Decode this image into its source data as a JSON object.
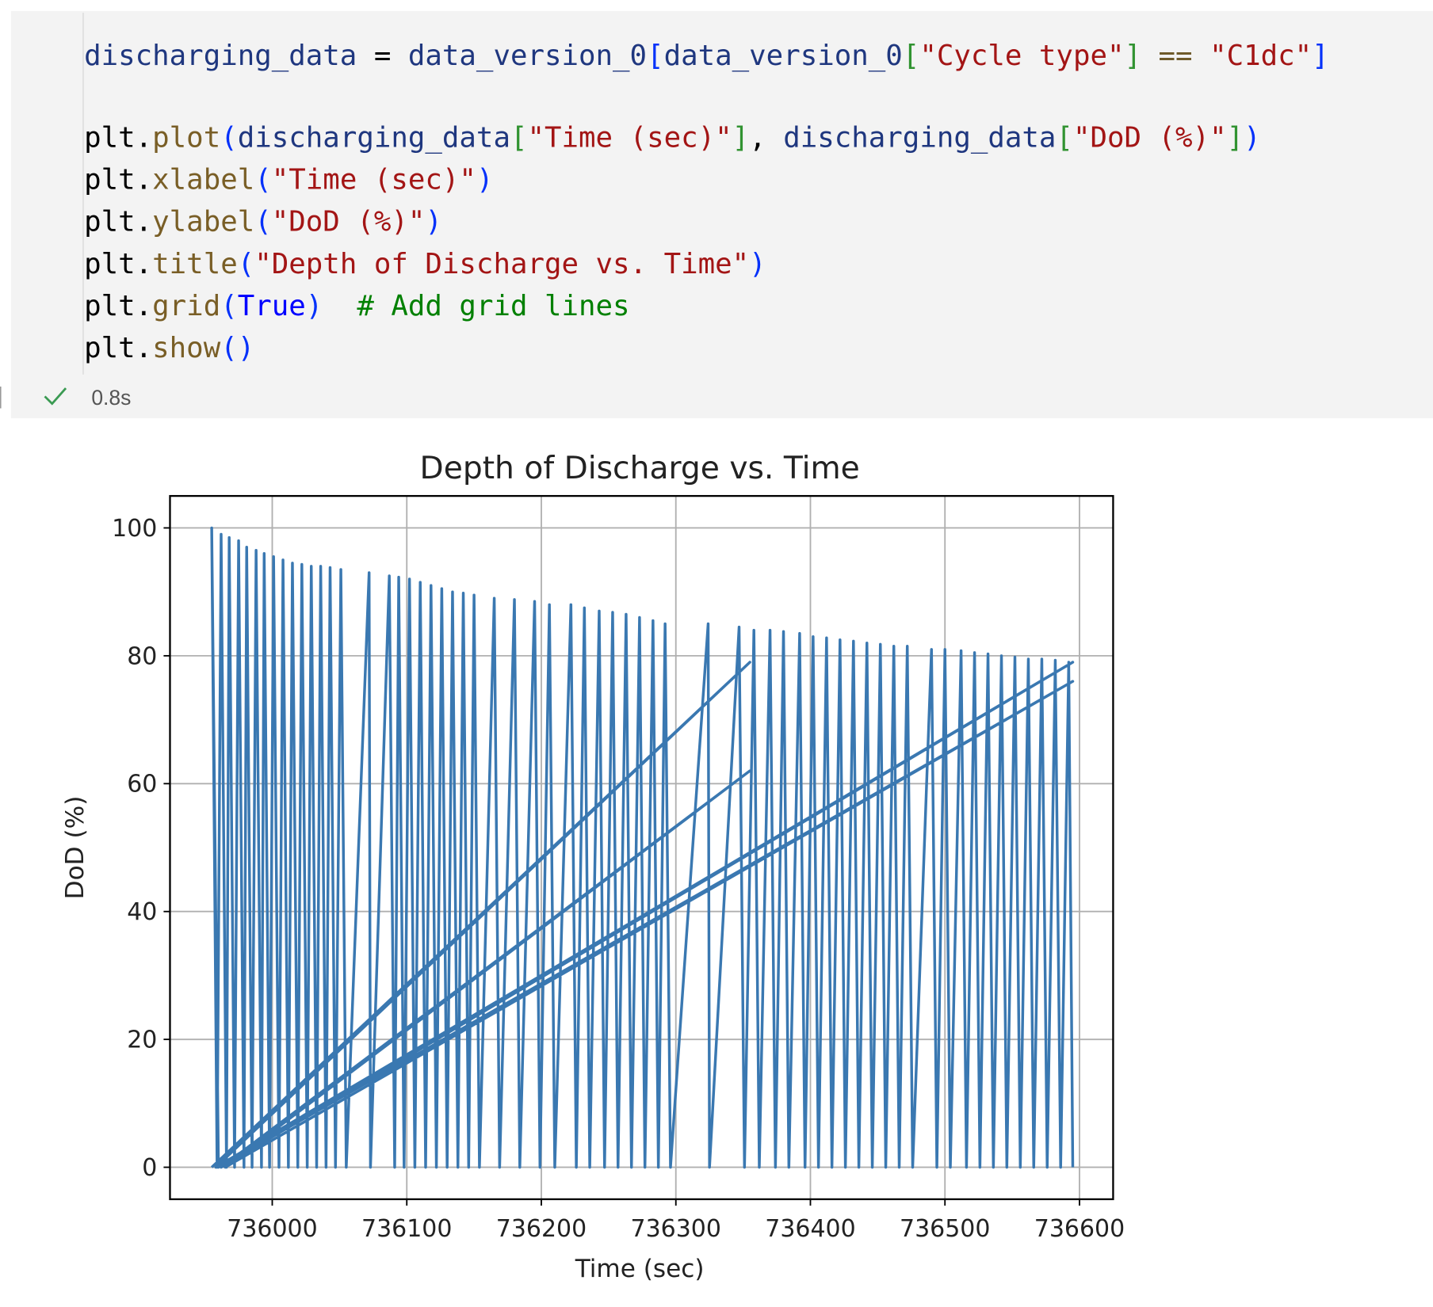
{
  "code": {
    "lines": [
      {
        "tokens": [
          {
            "text": "discharging_data",
            "color": "#1f377f"
          },
          {
            "text": " = ",
            "color": "#000000"
          },
          {
            "text": "data_version_0",
            "color": "#1f377f"
          },
          {
            "text": "[",
            "color": "#0431fa"
          },
          {
            "text": "data_version_0",
            "color": "#1f377f"
          },
          {
            "text": "[",
            "color": "#319331"
          },
          {
            "text": "\"Cycle type\"",
            "color": "#a31515"
          },
          {
            "text": "]",
            "color": "#319331"
          },
          {
            "text": " == ",
            "color": "#6f5a2a"
          },
          {
            "text": "\"C1dc\"",
            "color": "#a31515"
          },
          {
            "text": "]",
            "color": "#0431fa"
          }
        ]
      },
      {
        "tokens": [
          {
            "text": "plt.",
            "color": "#000000"
          },
          {
            "text": "plot",
            "color": "#795e26"
          },
          {
            "text": "(",
            "color": "#0431fa"
          },
          {
            "text": "discharging_data",
            "color": "#1f377f"
          },
          {
            "text": "[",
            "color": "#319331"
          },
          {
            "text": "\"Time (sec)\"",
            "color": "#a31515"
          },
          {
            "text": "]",
            "color": "#319331"
          },
          {
            "text": ", ",
            "color": "#000000"
          },
          {
            "text": "discharging_data",
            "color": "#1f377f"
          },
          {
            "text": "[",
            "color": "#319331"
          },
          {
            "text": "\"DoD (%)\"",
            "color": "#a31515"
          },
          {
            "text": "]",
            "color": "#319331"
          },
          {
            "text": ")",
            "color": "#0431fa"
          }
        ]
      },
      {
        "tokens": [
          {
            "text": "plt.",
            "color": "#000000"
          },
          {
            "text": "xlabel",
            "color": "#795e26"
          },
          {
            "text": "(",
            "color": "#0431fa"
          },
          {
            "text": "\"Time (sec)\"",
            "color": "#a31515"
          },
          {
            "text": ")",
            "color": "#0431fa"
          }
        ]
      },
      {
        "tokens": [
          {
            "text": "plt.",
            "color": "#000000"
          },
          {
            "text": "ylabel",
            "color": "#795e26"
          },
          {
            "text": "(",
            "color": "#0431fa"
          },
          {
            "text": "\"DoD (%)\"",
            "color": "#a31515"
          },
          {
            "text": ")",
            "color": "#0431fa"
          }
        ]
      },
      {
        "tokens": [
          {
            "text": "plt.",
            "color": "#000000"
          },
          {
            "text": "title",
            "color": "#795e26"
          },
          {
            "text": "(",
            "color": "#0431fa"
          },
          {
            "text": "\"Depth of Discharge vs. Time\"",
            "color": "#a31515"
          },
          {
            "text": ")",
            "color": "#0431fa"
          }
        ]
      },
      {
        "tokens": [
          {
            "text": "plt.",
            "color": "#000000"
          },
          {
            "text": "grid",
            "color": "#795e26"
          },
          {
            "text": "(",
            "color": "#0431fa"
          },
          {
            "text": "True",
            "color": "#0000ff"
          },
          {
            "text": ")",
            "color": "#0431fa"
          },
          {
            "text": "  # Add grid lines",
            "color": "#008000"
          }
        ]
      },
      {
        "tokens": [
          {
            "text": "plt.",
            "color": "#000000"
          },
          {
            "text": "show",
            "color": "#795e26"
          },
          {
            "text": "()",
            "color": "#0431fa"
          }
        ]
      }
    ]
  },
  "status": {
    "duration": "0.8s"
  },
  "chart_data": {
    "type": "line",
    "title": "Depth of Discharge vs. Time",
    "xlabel": "Time (sec)",
    "ylabel": "DoD (%)",
    "color": "#3a78b1",
    "grid": true,
    "xlim": [
      735924,
      736625
    ],
    "ylim": [
      -5,
      105
    ],
    "xticks": [
      736000,
      736100,
      736200,
      736300,
      736400,
      736500,
      736600
    ],
    "yticks": [
      0,
      20,
      40,
      60,
      80,
      100
    ],
    "x": [
      735955,
      736355,
      735958,
      736595,
      735962,
      736355,
      735965,
      736595,
      735960,
      735955,
      735959,
      735962,
      735966,
      735968,
      735972,
      735975,
      735979,
      735981,
      735985,
      735988,
      735992,
      735994,
      735998,
      736001,
      736005,
      736008,
      736012,
      736015,
      736019,
      736022,
      736026,
      736029,
      736033,
      736036,
      736040,
      736043,
      736047,
      736051,
      736055,
      736072,
      736073,
      736087,
      736091,
      736094,
      736098,
      736102,
      736106,
      736110,
      736114,
      736118,
      736122,
      736126,
      736130,
      736134,
      736138,
      736142,
      736146,
      736150,
      736154,
      736165,
      736169,
      736180,
      736184,
      736195,
      736199,
      736206,
      736210,
      736222,
      736226,
      736232,
      736236,
      736243,
      736247,
      736253,
      736257,
      736263,
      736267,
      736273,
      736277,
      736283,
      736287,
      736292,
      736296,
      736324,
      736325,
      736347,
      736351,
      736358,
      736362,
      736370,
      736374,
      736380,
      736384,
      736392,
      736396,
      736402,
      736406,
      736412,
      736416,
      736422,
      736426,
      736432,
      736436,
      736442,
      736446,
      736452,
      736456,
      736462,
      736466,
      736472,
      736476,
      736490,
      736494,
      736500,
      736504,
      736512,
      736516,
      736522,
      736526,
      736532,
      736536,
      736542,
      736546,
      736552,
      736556,
      736562,
      736566,
      736572,
      736576,
      736582,
      736586,
      736592,
      736595
    ],
    "values": [
      0,
      79,
      0,
      79,
      0,
      62,
      0,
      76,
      0,
      100,
      0,
      99,
      0,
      98.5,
      0,
      98,
      0,
      97,
      0,
      96.5,
      0,
      96,
      0,
      95.5,
      0,
      95,
      0,
      94.5,
      0,
      94.3,
      0,
      94,
      0,
      94,
      0,
      93.8,
      0,
      93.5,
      0,
      93,
      0,
      92.5,
      0,
      92.3,
      0,
      92,
      0,
      91.5,
      0,
      91,
      0,
      90.5,
      0,
      90,
      0,
      89.8,
      0,
      89.5,
      0,
      89,
      0,
      88.8,
      0,
      88.5,
      0,
      88,
      0,
      88,
      0,
      87.5,
      0,
      87,
      0,
      86.8,
      0,
      86.5,
      0,
      86,
      0,
      85.5,
      0,
      85,
      0,
      85,
      0,
      84.5,
      0,
      84,
      0,
      84,
      0,
      83.8,
      0,
      83.5,
      0,
      83,
      0,
      82.8,
      0,
      82.5,
      0,
      82.3,
      0,
      82,
      0,
      81.8,
      0,
      81.5,
      0,
      81.5,
      0,
      81,
      0,
      81,
      0,
      80.8,
      0,
      80.5,
      0,
      80.3,
      0,
      80,
      0,
      79.8,
      0,
      79.5,
      0,
      79.5,
      0,
      79.3,
      0,
      79,
      0
    ]
  }
}
